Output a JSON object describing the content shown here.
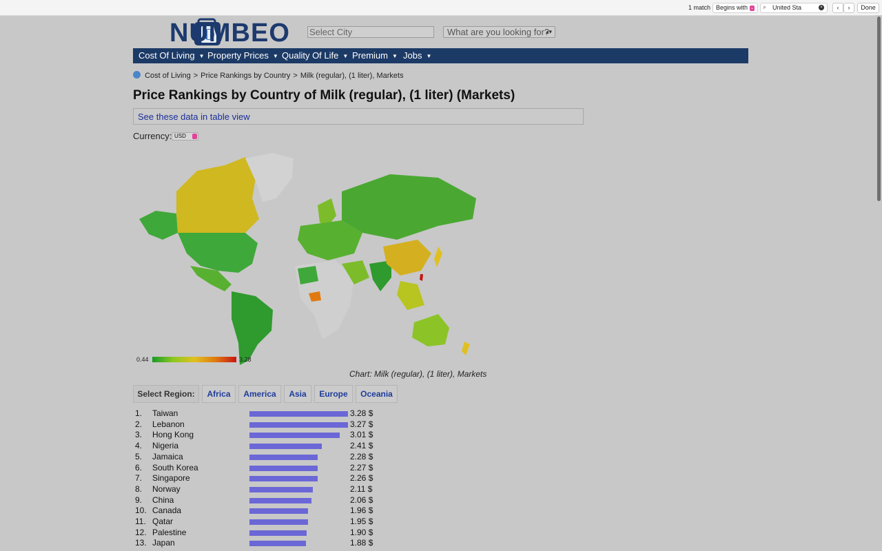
{
  "findbar": {
    "match_text": "1 match",
    "mode_label": "Begins with",
    "search_value": "United Sta",
    "done_label": "Done"
  },
  "header": {
    "logo_text": "NUMBEO",
    "city_placeholder": "Select City",
    "looking_label": "What are you looking for?"
  },
  "nav": [
    {
      "label": "Cost Of Living"
    },
    {
      "label": "Property Prices"
    },
    {
      "label": "Quality Of Life"
    },
    {
      "label": "Premium"
    },
    {
      "label": "Jobs"
    }
  ],
  "breadcrumb": [
    "Cost of Living",
    "Price Rankings by Country",
    "Milk (regular), (1 liter), Markets"
  ],
  "page_title": "Price Rankings by Country of Milk (regular), (1 liter) (Markets)",
  "table_link": "See these data in table view",
  "currency": {
    "label": "Currency:",
    "value": "USD"
  },
  "map": {
    "legend_min": "0.44",
    "legend_max": "3.28",
    "caption": "Chart: Milk (regular), (1 liter), Markets",
    "scale_colors": [
      "#1a9a2a",
      "#8cc820",
      "#e0c020",
      "#e07a10",
      "#c81414"
    ]
  },
  "regions": {
    "label": "Select Region:",
    "buttons": [
      "Africa",
      "America",
      "Asia",
      "Europe",
      "Oceania"
    ]
  },
  "chart_data": {
    "type": "bar",
    "title": "",
    "categories": [
      "Taiwan",
      "Lebanon",
      "Hong Kong",
      "Nigeria",
      "Jamaica",
      "South Korea",
      "Singapore",
      "Norway",
      "China",
      "Canada",
      "Qatar",
      "Palestine",
      "Japan"
    ],
    "values": [
      3.28,
      3.27,
      3.01,
      2.41,
      2.28,
      2.27,
      2.26,
      2.11,
      2.06,
      1.96,
      1.95,
      1.9,
      1.88
    ],
    "value_labels": [
      "3.28 $",
      "3.27 $",
      "3.01 $",
      "2.41 $",
      "2.28 $",
      "2.27 $",
      "2.26 $",
      "2.11 $",
      "2.06 $",
      "1.96 $",
      "1.95 $",
      "1.90 $",
      "1.88 $"
    ],
    "ranks": [
      "1.",
      "2.",
      "3.",
      "4.",
      "5.",
      "6.",
      "7.",
      "8.",
      "9.",
      "10.",
      "11.",
      "12.",
      "13."
    ],
    "bar_color": "#6b67d6",
    "xlim": [
      0,
      3.28
    ]
  }
}
